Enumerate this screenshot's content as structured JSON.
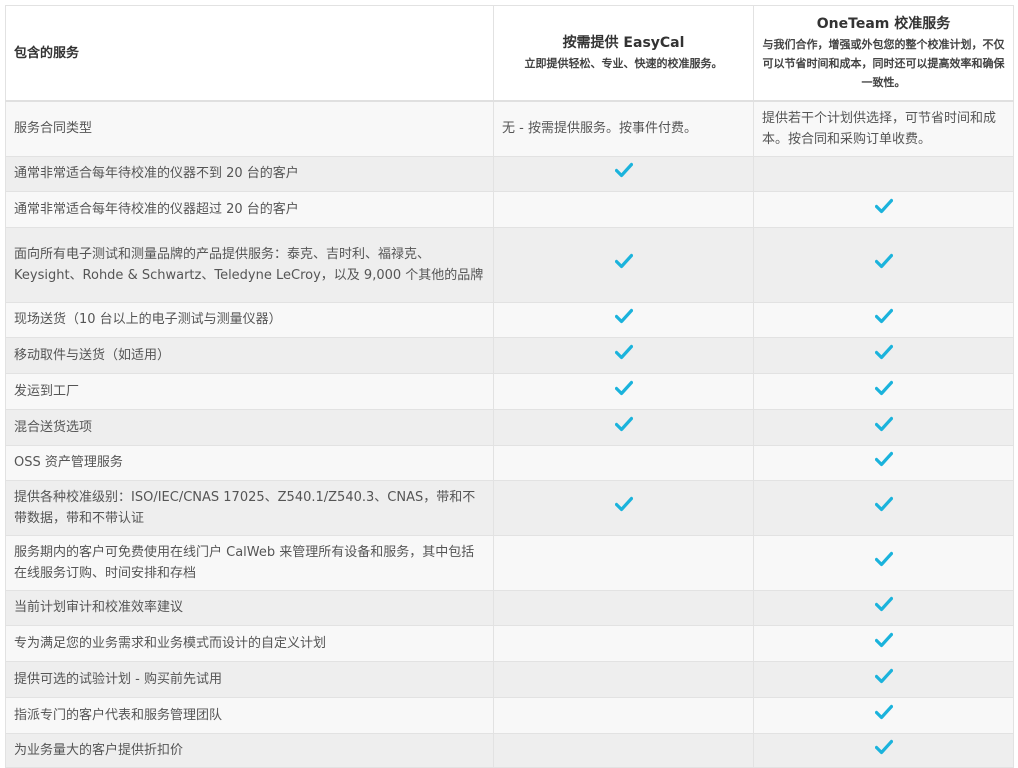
{
  "header": {
    "col1": "包含的服务",
    "col2": {
      "title": "按需提供 EasyCal",
      "subtitle": "立即提供轻松、专业、快速的校准服务。"
    },
    "col3": {
      "title": "OneTeam 校准服务",
      "subtitle": "与我们合作，增强或外包您的整个校准计划，不仅可以节省时间和成本，同时还可以提高效率和确保一致性。"
    }
  },
  "accent_color": "#1bb3dc",
  "rows": [
    {
      "label": "服务合同类型",
      "easycal": "无 - 按需提供服务。按事件付费。",
      "oneteam": "提供若干个计划供选择，可节省时间和成本。按合同和采购订单收费。"
    },
    {
      "label": "通常非常适合每年待校准的仪器不到 20 台的客户",
      "easycal": true,
      "oneteam": false
    },
    {
      "label": "通常非常适合每年待校准的仪器超过 20 台的客户",
      "easycal": false,
      "oneteam": true
    },
    {
      "label": "面向所有电子测试和测量品牌的产品提供服务：泰克、吉时利、福禄克、Keysight、Rohde & Schwartz、Teledyne LeCroy，以及 9,000 个其他的品牌",
      "easycal": true,
      "oneteam": true
    },
    {
      "label": "现场送货（10 台以上的电子测试与测量仪器）",
      "easycal": true,
      "oneteam": true
    },
    {
      "label": "移动取件与送货（如适用）",
      "easycal": true,
      "oneteam": true
    },
    {
      "label": "发运到工厂",
      "easycal": true,
      "oneteam": true
    },
    {
      "label": "混合送货选项",
      "easycal": true,
      "oneteam": true
    },
    {
      "label": "OSS 资产管理服务",
      "easycal": false,
      "oneteam": true
    },
    {
      "label": "提供各种校准级别：ISO/IEC/CNAS 17025、Z540.1/Z540.3、CNAS，带和不带数据，带和不带认证",
      "easycal": true,
      "oneteam": true
    },
    {
      "label": "服务期内的客户可免费使用在线门户 CalWeb 来管理所有设备和服务，其中包括在线服务订购、时间安排和存档",
      "easycal": false,
      "oneteam": true
    },
    {
      "label": "当前计划审计和校准效率建议",
      "easycal": false,
      "oneteam": true
    },
    {
      "label": "专为满足您的业务需求和业务模式而设计的自定义计划",
      "easycal": false,
      "oneteam": true
    },
    {
      "label": "提供可选的试验计划 - 购买前先试用",
      "easycal": false,
      "oneteam": true
    },
    {
      "label": "指派专门的客户代表和服务管理团队",
      "easycal": false,
      "oneteam": true
    },
    {
      "label": "为业务量大的客户提供折扣价",
      "easycal": false,
      "oneteam": true
    }
  ]
}
